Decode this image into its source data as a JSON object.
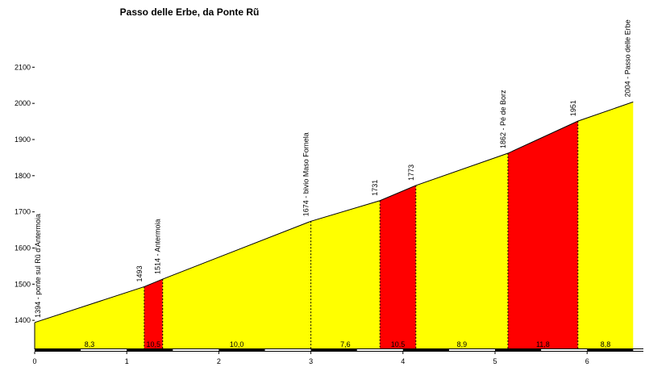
{
  "chart_data": {
    "type": "area",
    "title": "Passo delle Erbe, da Ponte Rũ",
    "xlabel": "",
    "ylabel": "",
    "xlim": [
      0,
      6.5
    ],
    "ylim": [
      1320,
      2100
    ],
    "y_ticks": [
      1400,
      1500,
      1600,
      1700,
      1800,
      1900,
      2000,
      2100
    ],
    "x_ticks": [
      0,
      1,
      2,
      3,
      4,
      5,
      6
    ],
    "grid": false,
    "colors": {
      "normal": "#ffff00",
      "steep": "#ff0000",
      "line": "#000000"
    },
    "profile": [
      {
        "x": 0.0,
        "y": 1394
      },
      {
        "x": 1.19,
        "y": 1493
      },
      {
        "x": 1.39,
        "y": 1514
      },
      {
        "x": 3.0,
        "y": 1674
      },
      {
        "x": 3.75,
        "y": 1731
      },
      {
        "x": 4.14,
        "y": 1773
      },
      {
        "x": 5.14,
        "y": 1862
      },
      {
        "x": 5.9,
        "y": 1951
      },
      {
        "x": 6.5,
        "y": 2004
      }
    ],
    "segments": [
      {
        "gradient": "8,3",
        "steep": false
      },
      {
        "gradient": "10,5",
        "steep": true
      },
      {
        "gradient": "10,0",
        "steep": false
      },
      {
        "gradient": "7,6",
        "steep": false
      },
      {
        "gradient": "10,5",
        "steep": true
      },
      {
        "gradient": "8,9",
        "steep": false
      },
      {
        "gradient": "11,8",
        "steep": true
      },
      {
        "gradient": "8,8",
        "steep": false
      }
    ],
    "point_labels": [
      {
        "index": 0,
        "text": "1394 - ponte sul Rũ d'Antermoia"
      },
      {
        "index": 1,
        "text": "1493"
      },
      {
        "index": 2,
        "text": "1514 - Antermoia"
      },
      {
        "index": 3,
        "text": "1674 - bivio Maso Fornela"
      },
      {
        "index": 4,
        "text": "1731"
      },
      {
        "index": 5,
        "text": "1773"
      },
      {
        "index": 6,
        "text": "1862 - Pé de Borz"
      },
      {
        "index": 7,
        "text": "1951"
      },
      {
        "index": 8,
        "text": "2004 - Passo delle Erbe"
      }
    ]
  }
}
